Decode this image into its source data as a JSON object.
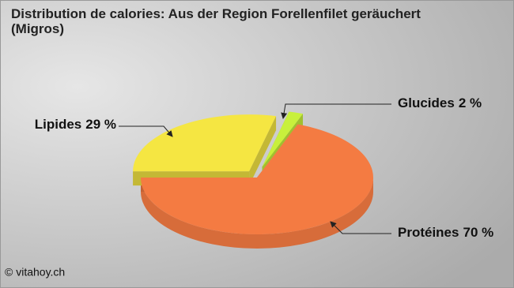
{
  "chart_data": {
    "type": "pie",
    "title": "Distribution de calories: Aus der Region Forellenfilet geräuchert (Migros)",
    "categories": [
      "Protéines",
      "Lipides",
      "Glucides"
    ],
    "values": [
      70,
      29,
      2
    ],
    "value_labels": [
      "70 %",
      "29 %",
      "2 %"
    ],
    "colors": [
      "#f47b42",
      "#f5e642",
      "#c8f03c"
    ],
    "credit": "© vitahoy.ch"
  }
}
